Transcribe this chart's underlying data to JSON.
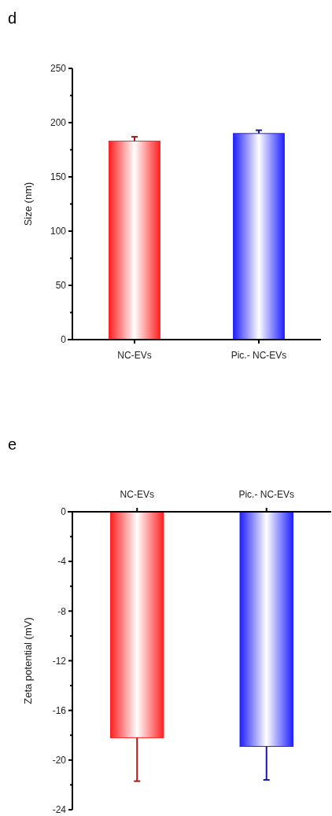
{
  "chart_data": [
    {
      "type": "bar",
      "title": "d",
      "ylabel": "Size (nm)",
      "categories": [
        "NC-EVs",
        "Pic.- NC-EVs"
      ],
      "series": [
        {
          "values": [
            183,
            190
          ],
          "colors": [
            "#ff2020",
            "#2020ff"
          ],
          "errors": [
            4,
            3
          ]
        }
      ],
      "ylim": [
        0,
        250
      ],
      "yticks": [
        0,
        {
          "value": 25,
          "label": null
        },
        50,
        {
          "value": 75,
          "label": null
        },
        100,
        {
          "value": 125,
          "label": null
        },
        150,
        {
          "value": 175,
          "label": null
        },
        200,
        {
          "value": 225,
          "label": null
        },
        250
      ],
      "grid": false
    },
    {
      "type": "bar",
      "title": "e",
      "ylabel": "Zeta potential (mV)",
      "categories": [
        "NC-EVs",
        "Pic.- NC-EVs"
      ],
      "series": [
        {
          "values": [
            -18.2,
            -18.9
          ],
          "colors": [
            "#ff2020",
            "#2020ff"
          ],
          "errors": [
            3.5,
            2.7
          ]
        }
      ],
      "ylim": [
        -24,
        0
      ],
      "yticks": [
        0,
        {
          "value": -2,
          "label": null
        },
        -4,
        {
          "value": -6,
          "label": null
        },
        -8,
        {
          "value": -10,
          "label": null
        },
        -12,
        {
          "value": -14,
          "label": null
        },
        -16,
        {
          "value": -18,
          "label": null
        },
        -20,
        {
          "value": -22,
          "label": null
        },
        -24
      ],
      "grid": false
    }
  ]
}
